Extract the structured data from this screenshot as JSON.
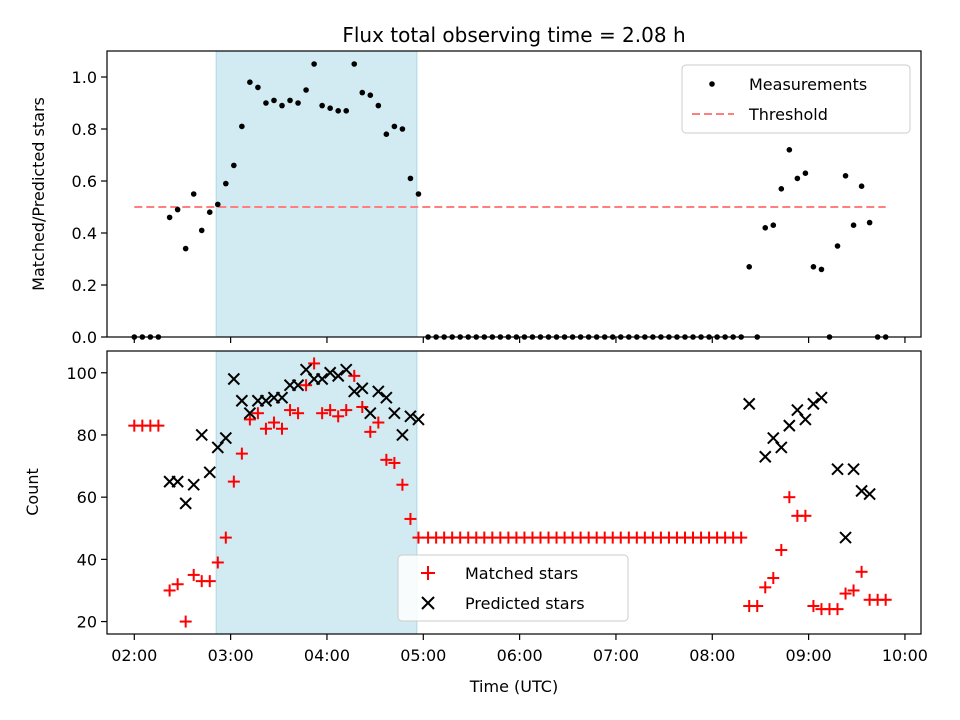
{
  "chart_data": [
    {
      "type": "scatter",
      "title": "Flux total observing time = 2.08 h",
      "xlabel": "",
      "ylabel": "Matched/Predicted stars",
      "xlim": [
        "01:43",
        "10:10"
      ],
      "ylim": [
        0,
        1.1
      ],
      "yticks": [
        "0.0",
        "0.2",
        "0.4",
        "0.6",
        "0.8",
        "1.0"
      ],
      "shaded_interval": [
        "02:51",
        "04:56"
      ],
      "shade_color": "#add8e6",
      "legend": {
        "location": "upper right",
        "entries": [
          "Measurements",
          "Threshold"
        ]
      },
      "series": [
        {
          "name": "Measurements",
          "marker": "dot",
          "color": "#000000",
          "points": [
            [
              "02:00",
              0
            ],
            [
              "02:05",
              0
            ],
            [
              "02:10",
              0
            ],
            [
              "02:15",
              0
            ],
            [
              "02:22",
              0.46
            ],
            [
              "02:27",
              0.49
            ],
            [
              "02:32",
              0.34
            ],
            [
              "02:37",
              0.55
            ],
            [
              "02:42",
              0.41
            ],
            [
              "02:47",
              0.48
            ],
            [
              "02:52",
              0.51
            ],
            [
              "02:57",
              0.59
            ],
            [
              "03:02",
              0.66
            ],
            [
              "03:07",
              0.81
            ],
            [
              "03:12",
              0.98
            ],
            [
              "03:17",
              0.96
            ],
            [
              "03:22",
              0.9
            ],
            [
              "03:27",
              0.91
            ],
            [
              "03:32",
              0.89
            ],
            [
              "03:37",
              0.91
            ],
            [
              "03:42",
              0.9
            ],
            [
              "03:47",
              0.95
            ],
            [
              "03:52",
              1.05
            ],
            [
              "03:57",
              0.89
            ],
            [
              "04:02",
              0.88
            ],
            [
              "04:07",
              0.87
            ],
            [
              "04:12",
              0.87
            ],
            [
              "04:17",
              1.05
            ],
            [
              "04:22",
              0.94
            ],
            [
              "04:27",
              0.93
            ],
            [
              "04:32",
              0.89
            ],
            [
              "04:37",
              0.78
            ],
            [
              "04:42",
              0.81
            ],
            [
              "04:47",
              0.8
            ],
            [
              "04:52",
              0.61
            ],
            [
              "04:57",
              0.55
            ],
            [
              "05:03",
              0
            ],
            [
              "05:08",
              0
            ],
            [
              "05:13",
              0
            ],
            [
              "05:18",
              0
            ],
            [
              "05:23",
              0
            ],
            [
              "05:28",
              0
            ],
            [
              "05:33",
              0
            ],
            [
              "05:38",
              0
            ],
            [
              "05:43",
              0
            ],
            [
              "05:48",
              0
            ],
            [
              "05:53",
              0
            ],
            [
              "05:58",
              0
            ],
            [
              "06:03",
              0
            ],
            [
              "06:08",
              0
            ],
            [
              "06:13",
              0
            ],
            [
              "06:18",
              0
            ],
            [
              "06:23",
              0
            ],
            [
              "06:28",
              0
            ],
            [
              "06:33",
              0
            ],
            [
              "06:38",
              0
            ],
            [
              "06:43",
              0
            ],
            [
              "06:48",
              0
            ],
            [
              "06:53",
              0
            ],
            [
              "06:58",
              0
            ],
            [
              "07:03",
              0
            ],
            [
              "07:08",
              0
            ],
            [
              "07:13",
              0
            ],
            [
              "07:18",
              0
            ],
            [
              "07:23",
              0
            ],
            [
              "07:28",
              0
            ],
            [
              "07:33",
              0
            ],
            [
              "07:38",
              0
            ],
            [
              "07:43",
              0
            ],
            [
              "07:48",
              0
            ],
            [
              "07:53",
              0
            ],
            [
              "07:58",
              0
            ],
            [
              "08:03",
              0
            ],
            [
              "08:08",
              0
            ],
            [
              "08:13",
              0
            ],
            [
              "08:18",
              0
            ],
            [
              "08:23",
              0.27
            ],
            [
              "08:28",
              0
            ],
            [
              "08:33",
              0.42
            ],
            [
              "08:38",
              0.43
            ],
            [
              "08:43",
              0.57
            ],
            [
              "08:48",
              0.72
            ],
            [
              "08:53",
              0.61
            ],
            [
              "08:58",
              0.63
            ],
            [
              "09:03",
              0.27
            ],
            [
              "09:08",
              0.26
            ],
            [
              "09:13",
              0
            ],
            [
              "09:18",
              0.35
            ],
            [
              "09:23",
              0.62
            ],
            [
              "09:28",
              0.43
            ],
            [
              "09:33",
              0.58
            ],
            [
              "09:38",
              0.44
            ],
            [
              "09:43",
              0
            ],
            [
              "09:48",
              0
            ]
          ]
        },
        {
          "name": "Threshold",
          "style": "dashed",
          "color": "#ff7f7f",
          "points": [
            [
              "02:00",
              0.5
            ],
            [
              "09:48",
              0.5
            ]
          ]
        }
      ]
    },
    {
      "type": "scatter",
      "title": "",
      "xlabel": "Time (UTC)",
      "ylabel": "Count",
      "xlim": [
        "01:43",
        "10:10"
      ],
      "ylim": [
        16,
        107
      ],
      "xticks": [
        "02:00",
        "03:00",
        "04:00",
        "05:00",
        "06:00",
        "07:00",
        "08:00",
        "09:00",
        "10:00"
      ],
      "yticks": [
        "20",
        "40",
        "60",
        "80",
        "100"
      ],
      "shaded_interval": [
        "02:51",
        "04:56"
      ],
      "shade_color": "#add8e6",
      "legend": {
        "location": "lower center",
        "entries": [
          "Matched stars",
          "Predicted stars"
        ]
      },
      "series": [
        {
          "name": "Matched stars",
          "marker": "plus",
          "color": "#ff0000",
          "points": [
            [
              "02:00",
              83
            ],
            [
              "02:05",
              83
            ],
            [
              "02:10",
              83
            ],
            [
              "02:15",
              83
            ],
            [
              "02:22",
              30
            ],
            [
              "02:27",
              32
            ],
            [
              "02:32",
              20
            ],
            [
              "02:37",
              35
            ],
            [
              "02:42",
              33
            ],
            [
              "02:47",
              33
            ],
            [
              "02:52",
              39
            ],
            [
              "02:57",
              47
            ],
            [
              "03:02",
              65
            ],
            [
              "03:07",
              74
            ],
            [
              "03:12",
              85
            ],
            [
              "03:17",
              87
            ],
            [
              "03:22",
              82
            ],
            [
              "03:27",
              84
            ],
            [
              "03:32",
              82
            ],
            [
              "03:37",
              88
            ],
            [
              "03:42",
              87
            ],
            [
              "03:47",
              96
            ],
            [
              "03:52",
              103
            ],
            [
              "03:57",
              87
            ],
            [
              "04:02",
              88
            ],
            [
              "04:07",
              86
            ],
            [
              "04:12",
              88
            ],
            [
              "04:17",
              99
            ],
            [
              "04:22",
              89
            ],
            [
              "04:27",
              81
            ],
            [
              "04:32",
              84
            ],
            [
              "04:37",
              72
            ],
            [
              "04:42",
              71
            ],
            [
              "04:47",
              64
            ],
            [
              "04:52",
              53
            ],
            [
              "04:57",
              47
            ],
            [
              "05:03",
              47
            ],
            [
              "05:08",
              47
            ],
            [
              "05:13",
              47
            ],
            [
              "05:18",
              47
            ],
            [
              "05:23",
              47
            ],
            [
              "05:28",
              47
            ],
            [
              "05:33",
              47
            ],
            [
              "05:38",
              47
            ],
            [
              "05:43",
              47
            ],
            [
              "05:48",
              47
            ],
            [
              "05:53",
              47
            ],
            [
              "05:58",
              47
            ],
            [
              "06:03",
              47
            ],
            [
              "06:08",
              47
            ],
            [
              "06:13",
              47
            ],
            [
              "06:18",
              47
            ],
            [
              "06:23",
              47
            ],
            [
              "06:28",
              47
            ],
            [
              "06:33",
              47
            ],
            [
              "06:38",
              47
            ],
            [
              "06:43",
              47
            ],
            [
              "06:48",
              47
            ],
            [
              "06:53",
              47
            ],
            [
              "06:58",
              47
            ],
            [
              "07:03",
              47
            ],
            [
              "07:08",
              47
            ],
            [
              "07:13",
              47
            ],
            [
              "07:18",
              47
            ],
            [
              "07:23",
              47
            ],
            [
              "07:28",
              47
            ],
            [
              "07:33",
              47
            ],
            [
              "07:38",
              47
            ],
            [
              "07:43",
              47
            ],
            [
              "07:48",
              47
            ],
            [
              "07:53",
              47
            ],
            [
              "07:58",
              47
            ],
            [
              "08:03",
              47
            ],
            [
              "08:08",
              47
            ],
            [
              "08:13",
              47
            ],
            [
              "08:18",
              47
            ],
            [
              "08:23",
              25
            ],
            [
              "08:28",
              25
            ],
            [
              "08:33",
              31
            ],
            [
              "08:38",
              34
            ],
            [
              "08:43",
              43
            ],
            [
              "08:48",
              60
            ],
            [
              "08:53",
              54
            ],
            [
              "08:58",
              54
            ],
            [
              "09:03",
              25
            ],
            [
              "09:08",
              24
            ],
            [
              "09:13",
              24
            ],
            [
              "09:18",
              24
            ],
            [
              "09:23",
              29
            ],
            [
              "09:28",
              30
            ],
            [
              "09:33",
              36
            ],
            [
              "09:38",
              27
            ],
            [
              "09:43",
              27
            ],
            [
              "09:48",
              27
            ]
          ]
        },
        {
          "name": "Predicted stars",
          "marker": "x",
          "color": "#000000",
          "points": [
            [
              "02:22",
              65
            ],
            [
              "02:27",
              65
            ],
            [
              "02:32",
              58
            ],
            [
              "02:37",
              64
            ],
            [
              "02:42",
              80
            ],
            [
              "02:47",
              68
            ],
            [
              "02:52",
              76
            ],
            [
              "02:57",
              79
            ],
            [
              "03:02",
              98
            ],
            [
              "03:07",
              91
            ],
            [
              "03:12",
              87
            ],
            [
              "03:17",
              91
            ],
            [
              "03:22",
              91
            ],
            [
              "03:27",
              92
            ],
            [
              "03:32",
              92
            ],
            [
              "03:37",
              96
            ],
            [
              "03:42",
              96
            ],
            [
              "03:47",
              101
            ],
            [
              "03:52",
              98
            ],
            [
              "03:57",
              98
            ],
            [
              "04:02",
              100
            ],
            [
              "04:07",
              99
            ],
            [
              "04:12",
              101
            ],
            [
              "04:17",
              94
            ],
            [
              "04:22",
              95
            ],
            [
              "04:27",
              87
            ],
            [
              "04:32",
              94
            ],
            [
              "04:37",
              92
            ],
            [
              "04:42",
              87
            ],
            [
              "04:47",
              80
            ],
            [
              "04:52",
              86
            ],
            [
              "04:57",
              85
            ],
            [
              "08:23",
              90
            ],
            [
              "08:33",
              73
            ],
            [
              "08:38",
              79
            ],
            [
              "08:43",
              76
            ],
            [
              "08:48",
              83
            ],
            [
              "08:53",
              88
            ],
            [
              "08:58",
              85
            ],
            [
              "09:03",
              90
            ],
            [
              "09:08",
              92
            ],
            [
              "09:18",
              69
            ],
            [
              "09:23",
              47
            ],
            [
              "09:28",
              69
            ],
            [
              "09:33",
              62
            ],
            [
              "09:38",
              61
            ]
          ]
        }
      ]
    }
  ]
}
